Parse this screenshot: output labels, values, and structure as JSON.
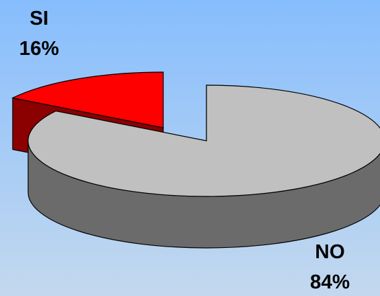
{
  "chart_data": {
    "type": "pie",
    "style": "3d-exploded",
    "slices": [
      {
        "label": "SI",
        "value": 16,
        "percent_label": "16%",
        "color": "#ff0000",
        "side_color": "#8b0000"
      },
      {
        "label": "NO",
        "value": 84,
        "percent_label": "84%",
        "color": "#c0c0c0",
        "side_color": "#6b6b6b"
      }
    ],
    "title": "",
    "legend": "none"
  }
}
